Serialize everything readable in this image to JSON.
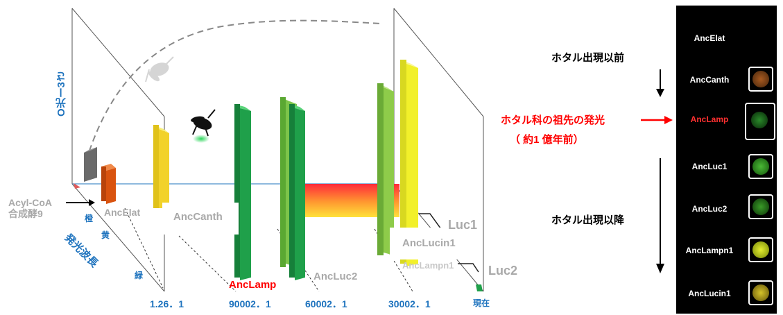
{
  "axis": {
    "vertical_label": "O光ー3さ",
    "depth_label": "発光波長",
    "substrate_label": "Acyl-CoA\n合成酵9",
    "color_orange": "橙",
    "color_yellow": "黄",
    "color_green": "緑"
  },
  "time_ticks": [
    "1.26．1",
    "90002．1",
    "60002．1",
    "30002．1",
    "現在"
  ],
  "enzymes": {
    "ancelat": "AncElat",
    "anccanth": "AncCanth",
    "anclamp": "AncLamp",
    "ancluc2": "AncLuc2",
    "anclucin1": "AncLucin1",
    "anclampn1": "AncLampn1",
    "luc1": "Luc1",
    "luc2": "Luc2"
  },
  "annotations": {
    "before": "ホタル出現以前",
    "origin_line1": "ホタル科の祖先の発光",
    "origin_line2": "（ 約1 億年前）",
    "after": "ホタル出現以降"
  },
  "panel": {
    "items": [
      {
        "label": "AncElat",
        "color": null
      },
      {
        "label": "AncCanth",
        "color": "#8a4a16"
      },
      {
        "label": "AncLamp",
        "color": "#1f6e1f",
        "highlight": true
      },
      {
        "label": "AncLuc1",
        "color": "#3aa62a"
      },
      {
        "label": "AncLuc2",
        "color": "#2e8a22"
      },
      {
        "label": "AncLampn1",
        "color": "#c7d61f"
      },
      {
        "label": "AncLucin1",
        "color": "#b8a21e"
      }
    ]
  },
  "colors": {
    "accent_red": "#ff0000",
    "axis_blue": "#1e73be",
    "bar_orange": "#d9530f",
    "bar_yellow": "#f2e62a",
    "bar_green": "#1fa04a",
    "bar_lightgreen": "#8ecb4a"
  }
}
